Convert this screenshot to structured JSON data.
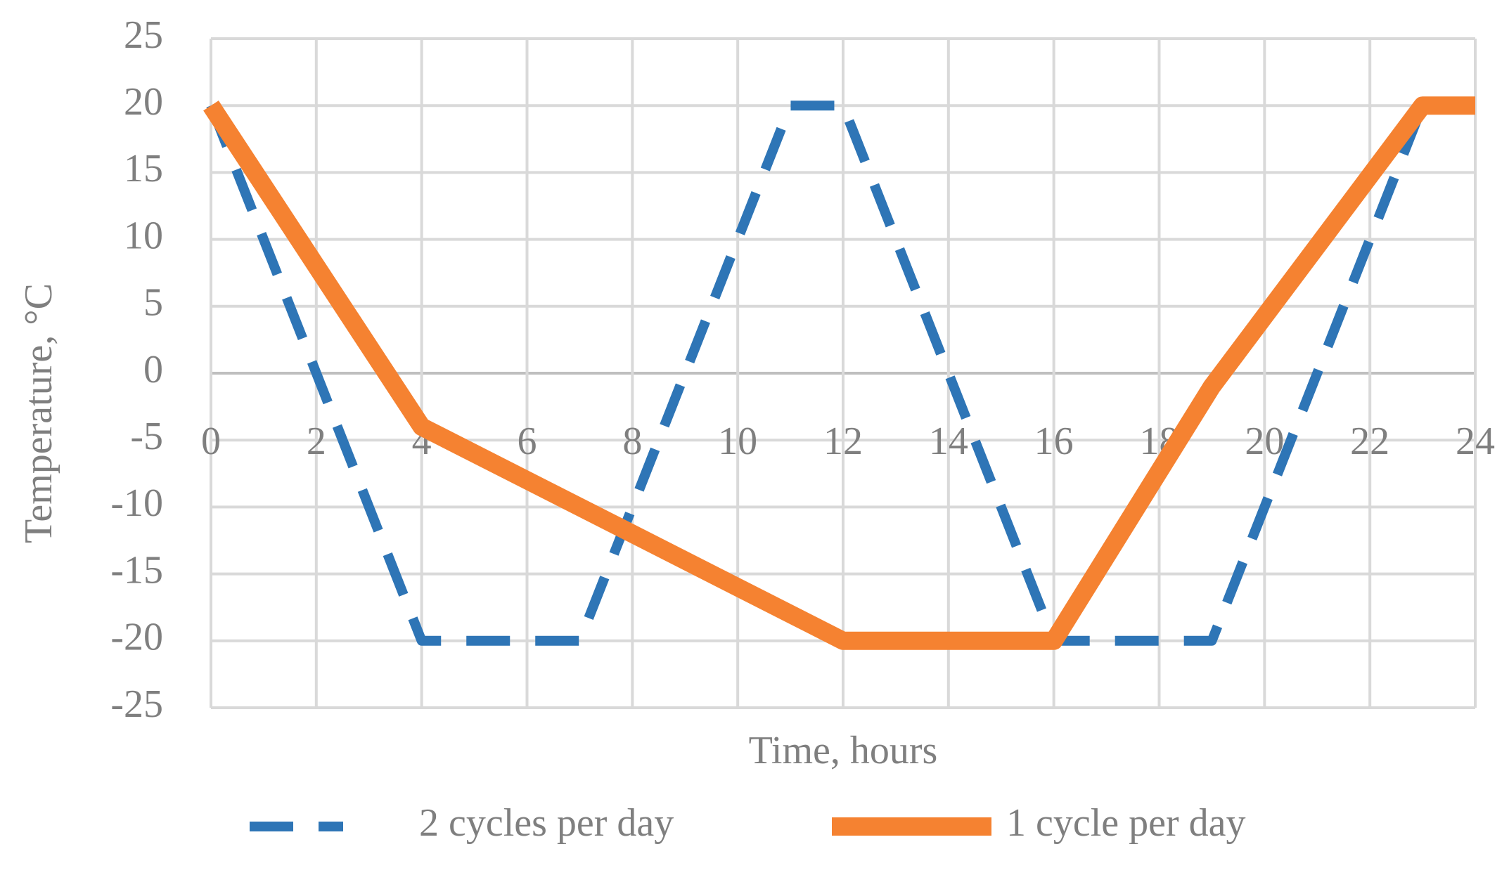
{
  "chart_data": {
    "type": "line",
    "x_label": "Time, hours",
    "y_label": "Temperature, °C",
    "series": [
      {
        "name": "2 cycles per day",
        "color": "#2e75b6",
        "dashed": true,
        "x": [
          0,
          4,
          7,
          11,
          12,
          16,
          19,
          23,
          24
        ],
        "values": [
          20,
          -20,
          -20,
          20,
          20,
          -20,
          -20,
          20,
          20
        ]
      },
      {
        "name": "1 cycle per day",
        "color": "#f58231",
        "dashed": false,
        "x": [
          0,
          4,
          12,
          16,
          19,
          23,
          24
        ],
        "values": [
          20,
          -4,
          -20,
          -20,
          -1,
          20,
          20
        ]
      }
    ],
    "xlim": [
      0,
      24
    ],
    "xticks": [
      0,
      2,
      4,
      6,
      8,
      10,
      12,
      14,
      16,
      18,
      20,
      22,
      24
    ],
    "ylim": [
      -25,
      25
    ],
    "yticks": [
      -25,
      -20,
      -15,
      -10,
      -5,
      0,
      5,
      10,
      15,
      20,
      25
    ],
    "grid": true,
    "legend": "bottom"
  }
}
